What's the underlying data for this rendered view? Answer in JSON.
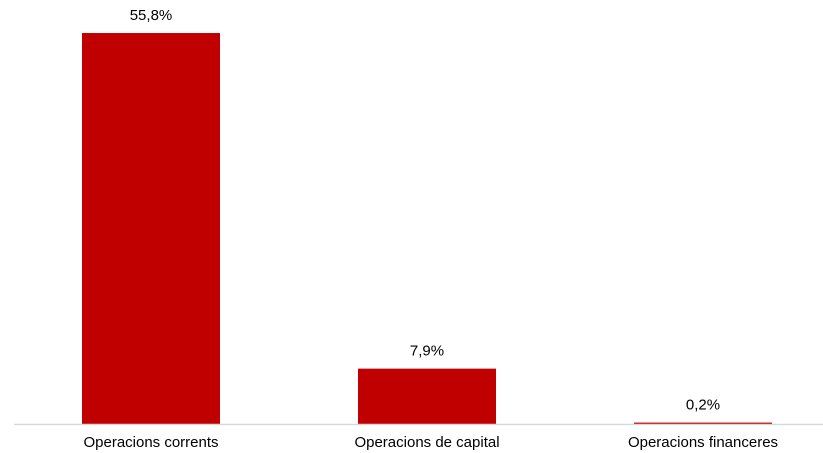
{
  "chart_data": {
    "type": "bar",
    "categories": [
      "Operacions corrents",
      "Operacions de capital",
      "Operacions financeres"
    ],
    "values": [
      55.8,
      7.9,
      0.2
    ],
    "data_labels": [
      "55,8%",
      "7,9%",
      "0,2%"
    ],
    "unit": "%",
    "title": "",
    "xlabel": "",
    "ylabel": "",
    "ylim": [
      0,
      58.8
    ],
    "grid": false,
    "legend": "none",
    "colors": {
      "bar": "#C00000",
      "axis": "#D9D9D9"
    }
  }
}
